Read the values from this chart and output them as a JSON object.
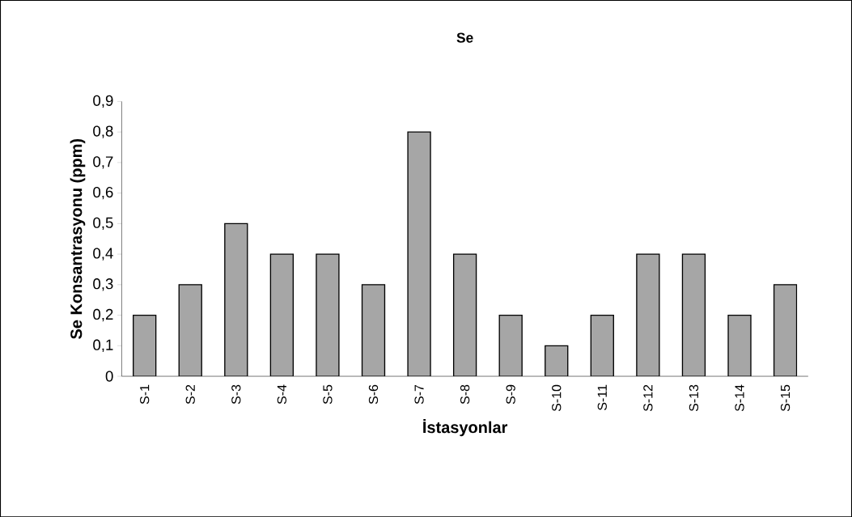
{
  "chart_data": {
    "type": "bar",
    "title": "Se",
    "xlabel": "İstasyonlar",
    "ylabel": "Se Konsantrasyonu (ppm)",
    "categories": [
      "S-1",
      "S-2",
      "S-3",
      "S-4",
      "S-5",
      "S-6",
      "S-7",
      "S-8",
      "S-9",
      "S-10",
      "S-11",
      "S-12",
      "S-13",
      "S-14",
      "S-15"
    ],
    "values": [
      0.2,
      0.3,
      0.5,
      0.4,
      0.4,
      0.3,
      0.8,
      0.4,
      0.2,
      0.1,
      0.2,
      0.4,
      0.4,
      0.2,
      0.3
    ],
    "color": "#a6a6a6",
    "ylim": [
      0,
      0.9
    ],
    "yticks": [
      {
        "value": 0,
        "label": "0"
      },
      {
        "value": 0.1,
        "label": "0,1"
      },
      {
        "value": 0.2,
        "label": "0,2"
      },
      {
        "value": 0.3,
        "label": "0,3"
      },
      {
        "value": 0.4,
        "label": "0,4"
      },
      {
        "value": 0.5,
        "label": "0,5"
      },
      {
        "value": 0.6,
        "label": "0,6"
      },
      {
        "value": 0.7,
        "label": "0,7"
      },
      {
        "value": 0.8,
        "label": "0,8"
      },
      {
        "value": 0.9,
        "label": "0,9"
      }
    ],
    "grid": false
  }
}
